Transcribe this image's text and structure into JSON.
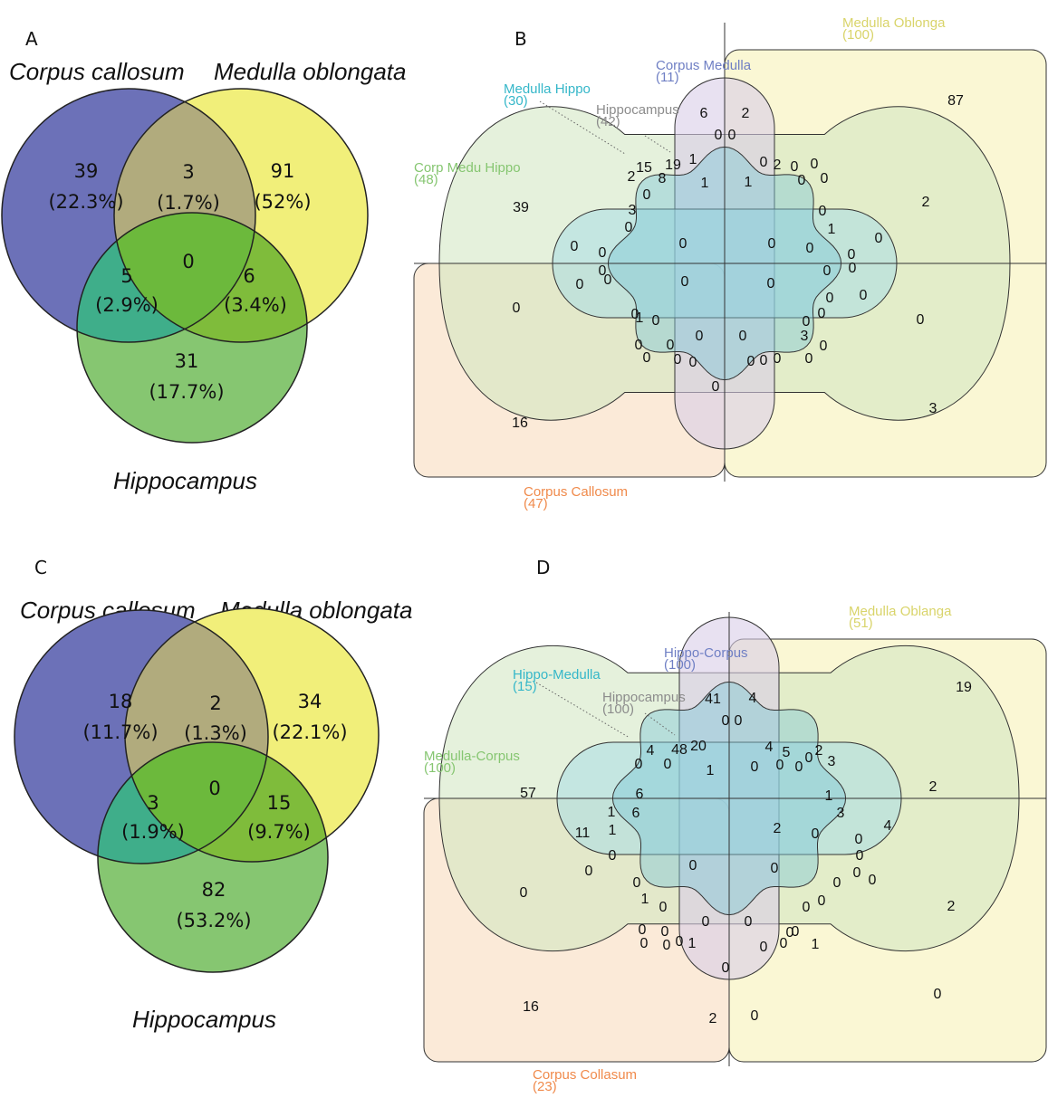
{
  "colors": {
    "corpus": "#6c71b8",
    "medulla": "#f1ef7a",
    "hippo": "#86c671",
    "corpus_medulla": "#b1ab7d",
    "corpus_hippo": "#3fae8a",
    "medulla_hippo": "#7fbc3b",
    "center": "#6cb93c"
  },
  "panel_a": {
    "letter": "A",
    "title_corpus": "Corpus callosum",
    "title_medulla": "Medulla oblongata",
    "title_hippo": "Hippocampus",
    "regions": {
      "corpus_only": {
        "count": "39",
        "pct": "(22.3%)"
      },
      "corpus_medulla": {
        "count": "3",
        "pct": "(1.7%)"
      },
      "medulla_only": {
        "count": "91",
        "pct": "(52%)"
      },
      "all": {
        "count": "0"
      },
      "corpus_hippo": {
        "count": "5",
        "pct": "(2.9%)"
      },
      "medulla_hippo": {
        "count": "6",
        "pct": "(3.4%)"
      },
      "hippo_only": {
        "count": "31",
        "pct": "(17.7%)"
      }
    }
  },
  "panel_c": {
    "letter": "C",
    "title_corpus": "Corpus callosum",
    "title_medulla": "Medulla oblongata",
    "title_hippo": "Hippocampus",
    "regions": {
      "corpus_only": {
        "count": "18",
        "pct": "(11.7%)"
      },
      "corpus_medulla": {
        "count": "2",
        "pct": "(1.3%)"
      },
      "medulla_only": {
        "count": "34",
        "pct": "(22.1%)"
      },
      "all": {
        "count": "0"
      },
      "corpus_hippo": {
        "count": "3",
        "pct": "(1.9%)"
      },
      "medulla_hippo": {
        "count": "15",
        "pct": "(9.7%)"
      },
      "hippo_only": {
        "count": "82",
        "pct": "(53.2%)"
      }
    }
  },
  "panel_b": {
    "letter": "B",
    "labels": [
      {
        "text": "Medulla Oblonga",
        "n": "(100)",
        "color": "#d9d46a"
      },
      {
        "text": "Corpus Medulla",
        "n": "(11)",
        "color": "#6f7fc4"
      },
      {
        "text": "Medulla Hippo",
        "n": "(30)",
        "color": "#35b7c9"
      },
      {
        "text": "Hippocampus",
        "n": "(42)",
        "color": "#8c8c8c"
      },
      {
        "text": "Corp Medu Hippo",
        "n": "(48)",
        "color": "#86c671"
      },
      {
        "text": "Corpus Callosum",
        "n": "(47)",
        "color": "#f08a4b"
      }
    ],
    "numbers": [
      "87",
      "6",
      "2",
      "0",
      "0",
      "15",
      "19",
      "1",
      "2",
      "8",
      "1",
      "1",
      "0",
      "2",
      "0",
      "0",
      "0",
      "0",
      "0",
      "39",
      "3",
      "0",
      "0",
      "1",
      "2",
      "0",
      "0",
      "0",
      "0",
      "0",
      "0",
      "0",
      "0",
      "0",
      "0",
      "0",
      "0",
      "0",
      "0",
      "0",
      "0",
      "0",
      "1",
      "0",
      "0",
      "0",
      "0",
      "0",
      "0",
      "0",
      "0",
      "0",
      "0",
      "3",
      "0",
      "0",
      "0",
      "0",
      "0",
      "0",
      "0",
      "16",
      "3",
      "0"
    ]
  },
  "panel_d": {
    "letter": "D",
    "labels": [
      {
        "text": "Medulla Oblanga",
        "n": "(51)",
        "color": "#d9d46a"
      },
      {
        "text": "Hippo-Corpus",
        "n": "(100)",
        "color": "#6f7fc4"
      },
      {
        "text": "Hippo-Medulla",
        "n": "(15)",
        "color": "#35b7c9"
      },
      {
        "text": "Hippocampus",
        "n": "(100)",
        "color": "#8c8c8c"
      },
      {
        "text": "Medulla-Corpus",
        "n": "(100)",
        "color": "#86c671"
      },
      {
        "text": "Corpus Collasum",
        "n": "(23)",
        "color": "#f08a4b"
      }
    ],
    "numbers": [
      "19",
      "41",
      "4",
      "0",
      "0",
      "4",
      "48",
      "20",
      "4",
      "5",
      "2",
      "0",
      "0",
      "0",
      "3",
      "1",
      "0",
      "0",
      "1",
      "0",
      "2",
      "57",
      "6",
      "6",
      "3",
      "1",
      "11",
      "1",
      "0",
      "2",
      "0",
      "4",
      "0",
      "0",
      "0",
      "0",
      "0",
      "0",
      "0",
      "0",
      "0",
      "0",
      "1",
      "0",
      "2",
      "0",
      "0",
      "0",
      "0",
      "0",
      "0",
      "0",
      "0",
      "0",
      "1",
      "0",
      "0",
      "0",
      "1",
      "0",
      "0",
      "2",
      "0",
      "16",
      "0"
    ]
  }
}
